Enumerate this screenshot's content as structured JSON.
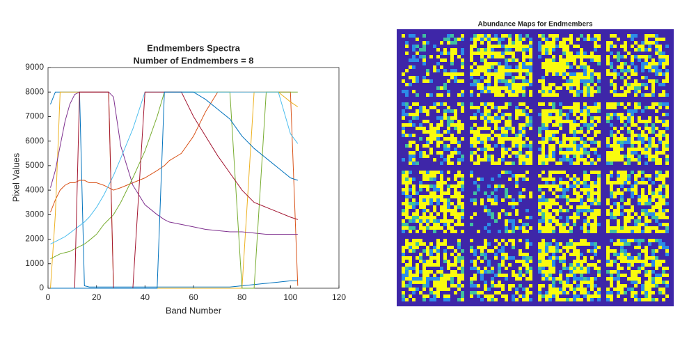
{
  "chart_data": [
    {
      "type": "line",
      "title": "Endmembers Spectra",
      "subtitle": "Number of Endmembers = 8",
      "x_label": "Band Number",
      "y_label": "Pixel Values",
      "xlim": [
        0,
        120
      ],
      "xticks": [
        0,
        20,
        40,
        60,
        80,
        100,
        120
      ],
      "ylim": [
        0,
        9000
      ],
      "yticks": [
        0,
        1000,
        2000,
        3000,
        4000,
        5000,
        6000,
        7000,
        8000,
        9000
      ],
      "x": [
        1,
        3,
        5,
        7,
        9,
        11,
        13,
        15,
        17,
        20,
        23,
        25,
        27,
        30,
        35,
        40,
        45,
        48,
        50,
        55,
        60,
        65,
        70,
        75,
        80,
        85,
        90,
        95,
        100,
        103
      ],
      "series": [
        {
          "color": "#0072BD",
          "values": [
            7500,
            8000,
            8000,
            8000,
            8000,
            8000,
            8000,
            100,
            50,
            50,
            50,
            50,
            50,
            50,
            50,
            50,
            50,
            50,
            50,
            50,
            50,
            50,
            50,
            50,
            100,
            150,
            200,
            250,
            300,
            300
          ]
        },
        {
          "color": "#D95319",
          "values": [
            3100,
            3600,
            4000,
            4200,
            4300,
            4300,
            4400,
            4400,
            4300,
            4300,
            4200,
            4100,
            4000,
            4100,
            4300,
            4500,
            4800,
            5000,
            5200,
            5500,
            6200,
            7200,
            8000,
            8000,
            8000,
            8000,
            8000,
            8000,
            8000,
            100
          ]
        },
        {
          "color": "#EDB120",
          "values": [
            0,
            3000,
            8000,
            8000,
            8000,
            8000,
            8000,
            8000,
            8000,
            8000,
            8000,
            8000,
            0,
            0,
            0,
            0,
            0,
            0,
            0,
            0,
            0,
            0,
            0,
            0,
            0,
            8000,
            8000,
            8000,
            7600,
            7400
          ]
        },
        {
          "color": "#7E2F8E",
          "values": [
            4100,
            4800,
            5800,
            6800,
            7500,
            7900,
            8000,
            8000,
            8000,
            8000,
            8000,
            8000,
            7800,
            5800,
            4200,
            3400,
            3000,
            2800,
            2700,
            2600,
            2500,
            2400,
            2350,
            2300,
            2300,
            2250,
            2200,
            2200,
            2200,
            2200
          ]
        },
        {
          "color": "#77AC30",
          "values": [
            1200,
            1300,
            1400,
            1450,
            1500,
            1600,
            1700,
            1800,
            1950,
            2200,
            2600,
            2800,
            3000,
            3500,
            4500,
            5600,
            7000,
            8000,
            8000,
            8000,
            8000,
            8000,
            8000,
            8000,
            0,
            0,
            8000,
            8000,
            8000,
            8000
          ]
        },
        {
          "color": "#4DBEEE",
          "values": [
            1800,
            1900,
            2000,
            2100,
            2250,
            2400,
            2550,
            2700,
            2900,
            3300,
            3800,
            4200,
            4600,
            5300,
            6500,
            8000,
            8000,
            8000,
            8000,
            8000,
            8000,
            8000,
            8000,
            8000,
            8000,
            8000,
            8000,
            8000,
            6300,
            5900
          ]
        },
        {
          "color": "#A2142F",
          "values": [
            0,
            0,
            0,
            0,
            0,
            0,
            8000,
            8000,
            8000,
            8000,
            8000,
            8000,
            0,
            0,
            0,
            8000,
            8000,
            8000,
            8000,
            8000,
            7000,
            6200,
            5400,
            4700,
            4000,
            3500,
            3300,
            3100,
            2900,
            2800
          ]
        },
        {
          "color": "#0072BD",
          "values": [
            0,
            0,
            0,
            0,
            0,
            0,
            0,
            0,
            0,
            0,
            0,
            0,
            0,
            0,
            0,
            0,
            0,
            8000,
            8000,
            8000,
            8000,
            7700,
            7300,
            6900,
            6200,
            5700,
            5300,
            4900,
            4500,
            4400
          ]
        }
      ]
    },
    {
      "type": "image",
      "title": "Abundance Maps for Endmembers"
    }
  ]
}
